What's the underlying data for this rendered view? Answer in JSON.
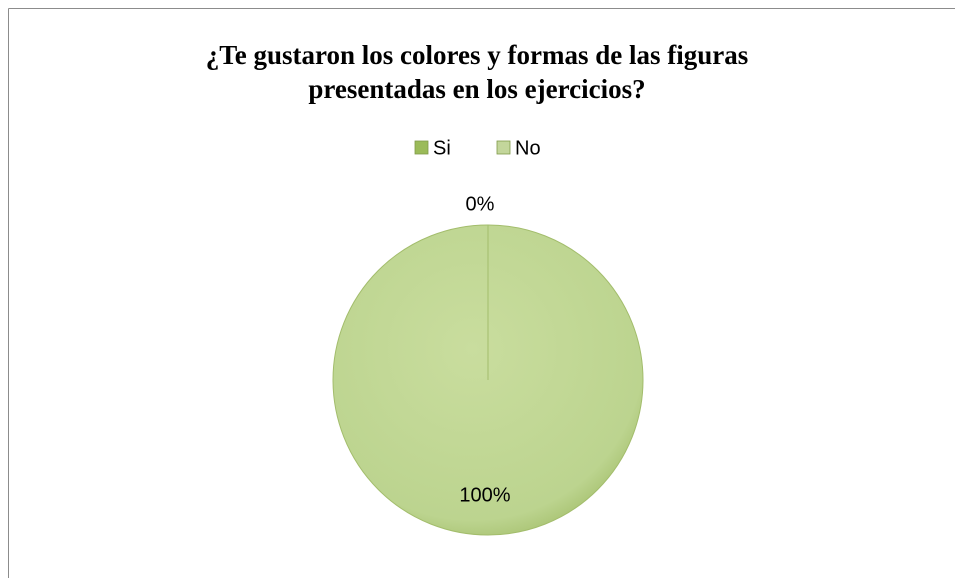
{
  "chart_data": {
    "type": "pie",
    "title": "¿Te gustaron los colores y formas de las figuras presentadas en los ejercicios?",
    "categories": [
      "Si",
      "No"
    ],
    "values": [
      100,
      0
    ],
    "value_labels": [
      "100%",
      "0%"
    ],
    "colors": [
      "#9bbb59",
      "#c3d69b"
    ],
    "legend": "top"
  }
}
